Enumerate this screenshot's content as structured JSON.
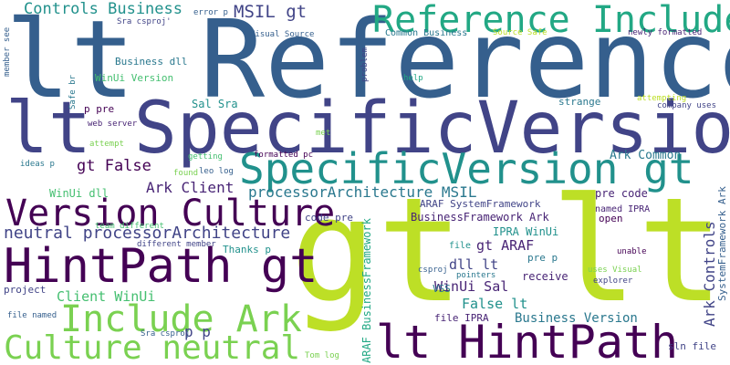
{
  "words": [
    {
      "text": "lt Reference",
      "color": "#355f8d"
    },
    {
      "text": "lt SpecificVersion",
      "color": "#414487"
    },
    {
      "text": "gt lt",
      "color": "#bddf26"
    },
    {
      "text": "SpecificVersion gt",
      "color": "#21918c"
    },
    {
      "text": "HintPath gt",
      "color": "#440154"
    },
    {
      "text": "lt HintPath",
      "color": "#440154"
    },
    {
      "text": "Reference Include",
      "color": "#22a884"
    },
    {
      "text": "Version Culture",
      "color": "#440154"
    },
    {
      "text": "Include Ark",
      "color": "#7ad151"
    },
    {
      "text": "Culture neutral",
      "color": "#7ad151"
    },
    {
      "text": "processorArchitecture MSIL",
      "color": "#2a788e"
    },
    {
      "text": "neutral processorArchitecture",
      "color": "#414487"
    },
    {
      "text": "Controls Business",
      "color": "#21918c"
    },
    {
      "text": "MSIL gt",
      "color": "#414487"
    },
    {
      "text": "gt False",
      "color": "#440154"
    },
    {
      "text": "Ark Client",
      "color": "#482475"
    },
    {
      "text": "Ark Common",
      "color": "#2a788e"
    },
    {
      "text": "Ark Controls",
      "color": "#414487"
    },
    {
      "text": "gt ARAF",
      "color": "#482475"
    },
    {
      "text": "dll lt",
      "color": "#414487"
    },
    {
      "text": "WinUi Sal",
      "color": "#482475"
    },
    {
      "text": "False lt",
      "color": "#21918c"
    },
    {
      "text": "Business Version",
      "color": "#2a788e"
    },
    {
      "text": "Client WinUi",
      "color": "#44bf70"
    },
    {
      "text": "p p",
      "color": "#414487"
    },
    {
      "text": "BusinessFramework Ark",
      "color": "#482475"
    },
    {
      "text": "ARAF SystemFramework",
      "color": "#414487"
    },
    {
      "text": "IPRA WinUi",
      "color": "#21918c"
    },
    {
      "text": "ARAF BusinessFramework",
      "color": "#22a884"
    },
    {
      "text": "SystemFramework Ark",
      "color": "#355f8d"
    },
    {
      "text": "pre code",
      "color": "#482475"
    },
    {
      "text": "WinUi dll",
      "color": "#44bf70"
    },
    {
      "text": "Business dll",
      "color": "#2a788e"
    },
    {
      "text": "WinUi Version",
      "color": "#44bf70"
    },
    {
      "text": "Sal Sra",
      "color": "#21918c"
    },
    {
      "text": "p pre",
      "color": "#440154"
    },
    {
      "text": "strange",
      "color": "#2a788e"
    },
    {
      "text": "code pre",
      "color": "#414487"
    },
    {
      "text": "Thanks p",
      "color": "#21918c"
    },
    {
      "text": "file",
      "color": "#21918c"
    },
    {
      "text": "pre p",
      "color": "#2a788e"
    },
    {
      "text": "receive",
      "color": "#482475"
    },
    {
      "text": "VSS",
      "color": "#2a788e"
    },
    {
      "text": "file IPRA",
      "color": "#482475"
    },
    {
      "text": "open",
      "color": "#440154"
    },
    {
      "text": "named IPRA",
      "color": "#482475"
    },
    {
      "text": "sln file",
      "color": "#414487"
    },
    {
      "text": "project",
      "color": "#414487"
    },
    {
      "text": "Sra csproj'",
      "color": "#414487"
    },
    {
      "text": "error p",
      "color": "#355f8d"
    },
    {
      "text": "Visual Source",
      "color": "#355f8d"
    },
    {
      "text": "Common Business",
      "color": "#2a788e"
    },
    {
      "text": "Source Safe",
      "color": "#bddf26"
    },
    {
      "text": "newly formatted",
      "color": "#482475"
    },
    {
      "text": "member see",
      "color": "#355f8d"
    },
    {
      "text": "Safe br",
      "color": "#2a788e"
    },
    {
      "text": "problem",
      "color": "#414487"
    },
    {
      "text": "help",
      "color": "#22a884"
    },
    {
      "text": "attempting",
      "color": "#bddf26"
    },
    {
      "text": "company uses",
      "color": "#414487"
    },
    {
      "text": "web server",
      "color": "#482475"
    },
    {
      "text": "met",
      "color": "#7ad151"
    },
    {
      "text": "attempt",
      "color": "#7ad151"
    },
    {
      "text": "getting",
      "color": "#44bf70"
    },
    {
      "text": "formatted pc",
      "color": "#440154"
    },
    {
      "text": "ideas p",
      "color": "#2a788e"
    },
    {
      "text": "found",
      "color": "#7ad151"
    },
    {
      "text": "leo log",
      "color": "#355f8d"
    },
    {
      "text": "team different",
      "color": "#44bf70"
    },
    {
      "text": "different member",
      "color": "#414487"
    },
    {
      "text": "unable",
      "color": "#440154"
    },
    {
      "text": "csproj",
      "color": "#355f8d"
    },
    {
      "text": "pointers",
      "color": "#2a788e"
    },
    {
      "text": "uses Visual",
      "color": "#7ad151"
    },
    {
      "text": "explorer",
      "color": "#414487"
    },
    {
      "text": "file named",
      "color": "#355f8d"
    },
    {
      "text": "Sra csproj",
      "color": "#355f8d"
    },
    {
      "text": "Tom log",
      "color": "#7ad151"
    }
  ]
}
